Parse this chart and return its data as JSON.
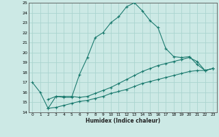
{
  "xlabel": "Humidex (Indice chaleur)",
  "xlim": [
    -0.5,
    23.5
  ],
  "ylim": [
    14,
    25
  ],
  "xticks": [
    0,
    1,
    2,
    3,
    4,
    5,
    6,
    7,
    8,
    9,
    10,
    11,
    12,
    13,
    14,
    15,
    16,
    17,
    18,
    19,
    20,
    21,
    22,
    23
  ],
  "yticks": [
    14,
    15,
    16,
    17,
    18,
    19,
    20,
    21,
    22,
    23,
    24,
    25
  ],
  "background_color": "#cce9e5",
  "grid_color": "#aad4cf",
  "line_color": "#1a7a6e",
  "lines": [
    {
      "x": [
        0,
        1,
        2,
        3,
        4,
        5,
        6,
        7,
        8,
        9,
        10,
        11,
        12,
        13,
        14,
        15,
        16,
        17,
        18,
        19,
        20,
        21,
        22,
        23
      ],
      "y": [
        17,
        16,
        14.4,
        15.6,
        15.5,
        15.5,
        17.8,
        19.5,
        21.5,
        22,
        23,
        23.6,
        24.6,
        25,
        24.2,
        23.2,
        22.5,
        20.4,
        19.6,
        19.5,
        19.6,
        18.8,
        18.2,
        18.4
      ]
    },
    {
      "x": [
        2,
        3,
        4,
        5,
        6,
        7,
        8,
        9,
        10,
        11,
        12,
        13,
        14,
        15,
        16,
        17,
        18,
        19,
        20,
        21,
        22,
        23
      ],
      "y": [
        15.3,
        15.6,
        15.6,
        15.6,
        15.5,
        15.6,
        15.9,
        16.2,
        16.5,
        16.9,
        17.3,
        17.7,
        18.1,
        18.4,
        18.7,
        18.9,
        19.1,
        19.3,
        19.5,
        19.1,
        18.2,
        18.4
      ]
    },
    {
      "x": [
        2,
        3,
        4,
        5,
        6,
        7,
        8,
        9,
        10,
        11,
        12,
        13,
        14,
        15,
        16,
        17,
        18,
        19,
        20,
        21,
        22,
        23
      ],
      "y": [
        14.4,
        14.5,
        14.7,
        14.9,
        15.1,
        15.2,
        15.4,
        15.6,
        15.9,
        16.1,
        16.3,
        16.6,
        16.9,
        17.1,
        17.3,
        17.5,
        17.7,
        17.9,
        18.1,
        18.2,
        18.2,
        18.4
      ]
    }
  ]
}
